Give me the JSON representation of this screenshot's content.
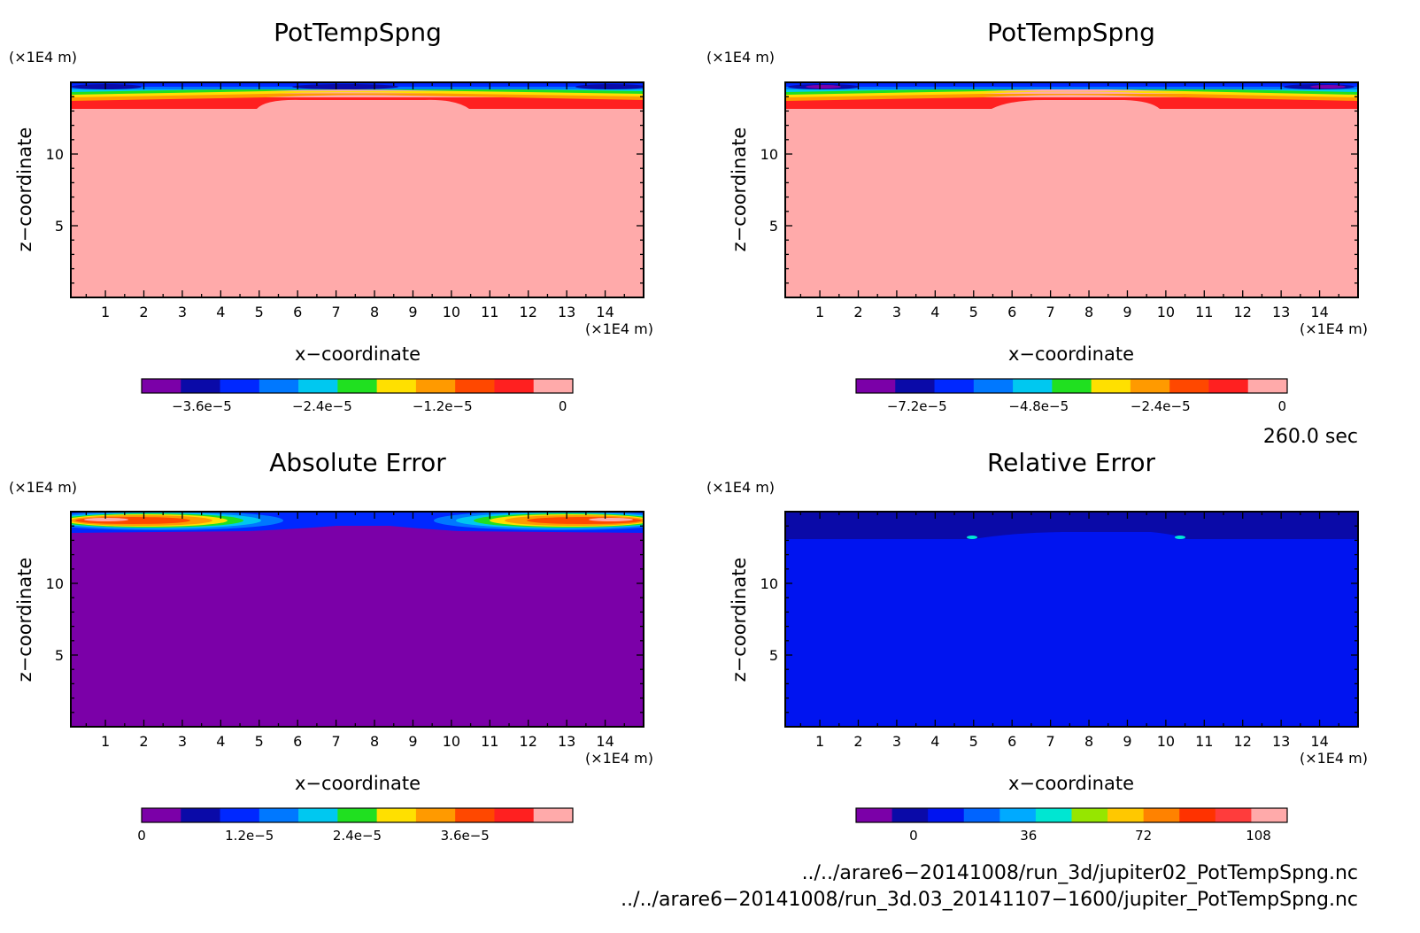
{
  "chart_data": [
    {
      "type": "heatmap",
      "title": "PotTempSpng",
      "xlabel": "x−coordinate",
      "ylabel": "z−coordinate",
      "x_unit": "(×1E4 m)",
      "y_unit": "(×1E4 m)",
      "x_ticks": [
        "1",
        "2",
        "3",
        "4",
        "5",
        "6",
        "7",
        "8",
        "9",
        "10",
        "11",
        "12",
        "13",
        "14"
      ],
      "y_ticks": [
        "5",
        "10"
      ],
      "xlim": [
        0.1,
        15
      ],
      "ylim": [
        0,
        15
      ],
      "colorbar": {
        "ticks": [
          "−3.6e−5",
          "−2.4e−5",
          "−1.2e−5",
          "0"
        ],
        "tick_values": [
          -3.6e-05,
          -2.4e-05,
          -1.2e-05,
          0
        ],
        "range": [
          -4.2e-05,
          1e-06
        ],
        "colors": [
          "#7b00a8",
          "#0a0aa8",
          "#0028ff",
          "#0078ff",
          "#00c8f0",
          "#20e020",
          "#ffe000",
          "#ff9a00",
          "#ff4800",
          "#ff2020",
          "#ffaaaa"
        ]
      },
      "description_values": {
        "bulk_value": 0,
        "sponge_layer_min": -3.6e-05,
        "sponge_top_z": 14.7
      }
    },
    {
      "type": "heatmap",
      "title": "PotTempSpng",
      "xlabel": "x−coordinate",
      "ylabel": "z−coordinate",
      "x_unit": "(×1E4 m)",
      "y_unit": "(×1E4 m)",
      "x_ticks": [
        "1",
        "2",
        "3",
        "4",
        "5",
        "6",
        "7",
        "8",
        "9",
        "10",
        "11",
        "12",
        "13",
        "14"
      ],
      "y_ticks": [
        "5",
        "10"
      ],
      "xlim": [
        0.1,
        15
      ],
      "ylim": [
        0,
        15
      ],
      "colorbar": {
        "ticks": [
          "−7.2e−5",
          "−4.8e−5",
          "−2.4e−5",
          "0"
        ],
        "tick_values": [
          -7.2e-05,
          -4.8e-05,
          -2.4e-05,
          0
        ],
        "range": [
          -8.4e-05,
          1e-06
        ],
        "colors": [
          "#7b00a8",
          "#0a0aa8",
          "#0028ff",
          "#0078ff",
          "#00c8f0",
          "#20e020",
          "#ffe000",
          "#ff9a00",
          "#ff4800",
          "#ff2020",
          "#ffaaaa"
        ]
      }
    },
    {
      "type": "heatmap",
      "title": "Absolute Error",
      "xlabel": "x−coordinate",
      "ylabel": "z−coordinate",
      "x_unit": "(×1E4 m)",
      "y_unit": "(×1E4 m)",
      "x_ticks": [
        "1",
        "2",
        "3",
        "4",
        "5",
        "6",
        "7",
        "8",
        "9",
        "10",
        "11",
        "12",
        "13",
        "14"
      ],
      "y_ticks": [
        "5",
        "10"
      ],
      "xlim": [
        0.1,
        15
      ],
      "ylim": [
        0,
        15
      ],
      "colorbar": {
        "ticks": [
          "0",
          "1.2e−5",
          "2.4e−5",
          "3.6e−5"
        ],
        "tick_values": [
          0,
          1.2e-05,
          2.4e-05,
          3.6e-05
        ],
        "range": [
          0,
          4.8e-05
        ],
        "colors": [
          "#7b00a8",
          "#0a0aa8",
          "#0028ff",
          "#0078ff",
          "#00c8f0",
          "#20e020",
          "#ffe000",
          "#ff9a00",
          "#ff4800",
          "#ff2020",
          "#ffaaaa"
        ]
      }
    },
    {
      "type": "heatmap",
      "title": "Relative Error",
      "xlabel": "x−coordinate",
      "ylabel": "z−coordinate",
      "x_unit": "(×1E4 m)",
      "y_unit": "(×1E4 m)",
      "x_ticks": [
        "1",
        "2",
        "3",
        "4",
        "5",
        "6",
        "7",
        "8",
        "9",
        "10",
        "11",
        "12",
        "13",
        "14"
      ],
      "y_ticks": [
        "5",
        "10"
      ],
      "xlim": [
        0.1,
        15
      ],
      "ylim": [
        0,
        15
      ],
      "colorbar": {
        "ticks": [
          "0",
          "36",
          "72",
          "108"
        ],
        "tick_values": [
          0,
          36,
          72,
          108
        ],
        "range": [
          -18,
          117
        ],
        "colors": [
          "#7b00a8",
          "#0a0aa8",
          "#0014f0",
          "#0064ff",
          "#00aaff",
          "#00e6d2",
          "#96e600",
          "#ffc800",
          "#ff8200",
          "#ff3200",
          "#ff3c3c",
          "#ffaaaa"
        ]
      }
    }
  ],
  "time_label": "260.0 sec",
  "footer": {
    "file1": "../../arare6−20141008/run_3d/jupiter02_PotTempSpng.nc",
    "file2": "../../arare6−20141008/run_3d.03_20141107−1600/jupiter_PotTempSpng.nc"
  },
  "colors": {
    "bulk_pink": "#ffaaaa",
    "bulk_purple": "#7b00a8",
    "bulk_blue": "#0028ff"
  }
}
